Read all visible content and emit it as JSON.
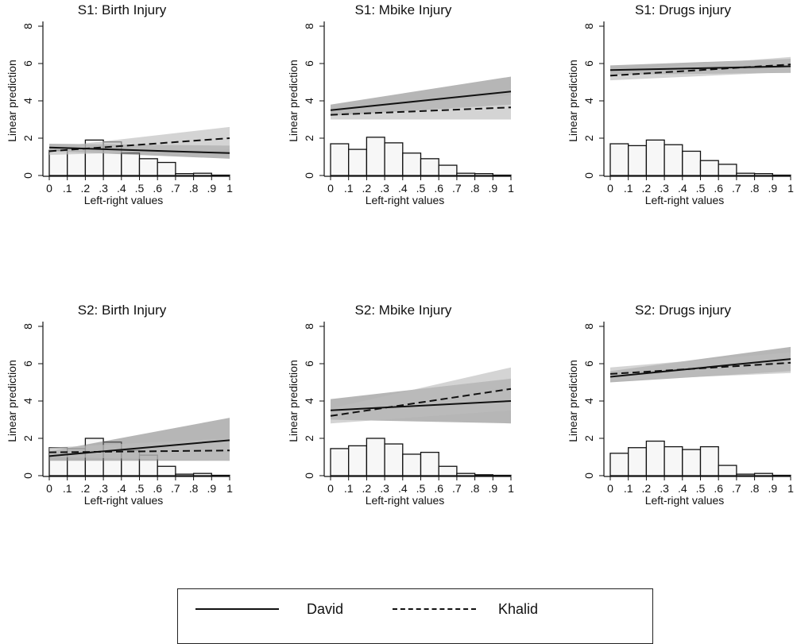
{
  "legend": {
    "entries": [
      "David",
      "Khalid"
    ]
  },
  "colors": {
    "line": "#111111",
    "band_dark": "#7a7a7a",
    "band_light": "#bdbdbd",
    "bar_fill": "#f7f7f7",
    "bar_edge": "#111111"
  },
  "chart_data": [
    {
      "type": "line",
      "title": "S1: Birth Injury",
      "xlabel": "Left-right values",
      "ylabel": "Linear prediction",
      "xlim": [
        0,
        1
      ],
      "ylim": [
        0,
        8
      ],
      "xticks": [
        "0",
        ".1",
        ".2",
        ".3",
        ".4",
        ".5",
        ".6",
        ".7",
        ".8",
        ".9",
        "1"
      ],
      "yticks": [
        "0",
        "2",
        "4",
        "6",
        "8"
      ],
      "series": [
        {
          "name": "David",
          "style": "solid",
          "x": [
            0,
            1
          ],
          "y": [
            1.5,
            1.2
          ],
          "ci_lower": [
            1.3,
            0.9
          ],
          "ci_upper": [
            1.7,
            1.6
          ]
        },
        {
          "name": "Khalid",
          "style": "dashed",
          "x": [
            0,
            1
          ],
          "y": [
            1.3,
            2.0
          ],
          "ci_lower": [
            1.1,
            1.4
          ],
          "ci_upper": [
            1.5,
            2.6
          ]
        }
      ],
      "histogram": {
        "bin_edges": [
          0,
          0.1,
          0.2,
          0.3,
          0.4,
          0.5,
          0.6,
          0.7,
          0.8,
          0.9,
          1.0
        ],
        "heights": [
          1.35,
          1.45,
          1.9,
          1.8,
          1.2,
          0.9,
          0.7,
          0.1,
          0.12,
          0.02
        ]
      }
    },
    {
      "type": "line",
      "title": "S1: Mbike Injury",
      "xlabel": "Left-right values",
      "ylabel": "Linear prediction",
      "xlim": [
        0,
        1
      ],
      "ylim": [
        0,
        8
      ],
      "xticks": [
        "0",
        ".1",
        ".2",
        ".3",
        ".4",
        ".5",
        ".6",
        ".7",
        ".8",
        ".9",
        "1"
      ],
      "yticks": [
        "0",
        "2",
        "4",
        "6",
        "8"
      ],
      "series": [
        {
          "name": "David",
          "style": "solid",
          "x": [
            0,
            1
          ],
          "y": [
            3.5,
            4.5
          ],
          "ci_lower": [
            3.2,
            3.8
          ],
          "ci_upper": [
            3.8,
            5.3
          ]
        },
        {
          "name": "Khalid",
          "style": "dashed",
          "x": [
            0,
            1
          ],
          "y": [
            3.25,
            3.65
          ],
          "ci_lower": [
            3.0,
            3.0
          ],
          "ci_upper": [
            3.5,
            4.3
          ]
        }
      ],
      "histogram": {
        "bin_edges": [
          0,
          0.1,
          0.2,
          0.3,
          0.4,
          0.5,
          0.6,
          0.7,
          0.8,
          0.9,
          1.0
        ],
        "heights": [
          1.7,
          1.4,
          2.05,
          1.75,
          1.2,
          0.9,
          0.55,
          0.12,
          0.1,
          0.02
        ]
      }
    },
    {
      "type": "line",
      "title": "S1: Drugs injury",
      "xlabel": "Left-right values",
      "ylabel": "Linear prediction",
      "xlim": [
        0,
        1
      ],
      "ylim": [
        0,
        8
      ],
      "xticks": [
        "0",
        ".1",
        ".2",
        ".3",
        ".4",
        ".5",
        ".6",
        ".7",
        ".8",
        ".9",
        "1"
      ],
      "yticks": [
        "0",
        "2",
        "4",
        "6",
        "8"
      ],
      "series": [
        {
          "name": "David",
          "style": "solid",
          "x": [
            0,
            1
          ],
          "y": [
            5.65,
            5.85
          ],
          "ci_lower": [
            5.4,
            5.5
          ],
          "ci_upper": [
            5.9,
            6.25
          ]
        },
        {
          "name": "Khalid",
          "style": "dashed",
          "x": [
            0,
            1
          ],
          "y": [
            5.35,
            5.95
          ],
          "ci_lower": [
            5.1,
            5.55
          ],
          "ci_upper": [
            5.6,
            6.35
          ]
        }
      ],
      "histogram": {
        "bin_edges": [
          0,
          0.1,
          0.2,
          0.3,
          0.4,
          0.5,
          0.6,
          0.7,
          0.8,
          0.9,
          1.0
        ],
        "heights": [
          1.7,
          1.6,
          1.9,
          1.65,
          1.3,
          0.8,
          0.6,
          0.12,
          0.1,
          0.02
        ]
      }
    },
    {
      "type": "line",
      "title": "S2: Birth Injury",
      "xlabel": "Left-right values",
      "ylabel": "Linear prediction",
      "xlim": [
        0,
        1
      ],
      "ylim": [
        0,
        8
      ],
      "xticks": [
        "0",
        ".1",
        ".2",
        ".3",
        ".4",
        ".5",
        ".6",
        ".7",
        ".8",
        ".9",
        "1"
      ],
      "yticks": [
        "0",
        "2",
        "4",
        "6",
        "8"
      ],
      "series": [
        {
          "name": "David",
          "style": "solid",
          "x": [
            0,
            1
          ],
          "y": [
            1.05,
            1.9
          ],
          "ci_lower": [
            0.8,
            0.8
          ],
          "ci_upper": [
            1.3,
            3.1
          ]
        },
        {
          "name": "Khalid",
          "style": "dashed",
          "x": [
            0,
            1
          ],
          "y": [
            1.25,
            1.35
          ],
          "ci_lower": [
            1.0,
            0.8
          ],
          "ci_upper": [
            1.5,
            2.0
          ]
        }
      ],
      "histogram": {
        "bin_edges": [
          0,
          0.1,
          0.2,
          0.3,
          0.4,
          0.5,
          0.6,
          0.7,
          0.8,
          0.9,
          1.0
        ],
        "heights": [
          1.5,
          1.45,
          2.0,
          1.8,
          1.35,
          1.1,
          0.5,
          0.08,
          0.12,
          0.02
        ]
      }
    },
    {
      "type": "line",
      "title": "S2: Mbike Injury",
      "xlabel": "Left-right values",
      "ylabel": "Linear prediction",
      "xlim": [
        0,
        1
      ],
      "ylim": [
        0,
        8
      ],
      "xticks": [
        "0",
        ".1",
        ".2",
        ".3",
        ".4",
        ".5",
        ".6",
        ".7",
        ".8",
        ".9",
        "1"
      ],
      "yticks": [
        "0",
        "2",
        "4",
        "6",
        "8"
      ],
      "series": [
        {
          "name": "David",
          "style": "solid",
          "x": [
            0,
            1
          ],
          "y": [
            3.5,
            4.0
          ],
          "ci_lower": [
            3.0,
            2.8
          ],
          "ci_upper": [
            4.1,
            5.2
          ]
        },
        {
          "name": "Khalid",
          "style": "dashed",
          "x": [
            0,
            1
          ],
          "y": [
            3.2,
            4.65
          ],
          "ci_lower": [
            2.8,
            3.5
          ],
          "ci_upper": [
            3.6,
            5.8
          ]
        }
      ],
      "histogram": {
        "bin_edges": [
          0,
          0.1,
          0.2,
          0.3,
          0.4,
          0.5,
          0.6,
          0.7,
          0.8,
          0.9,
          1.0
        ],
        "heights": [
          1.45,
          1.6,
          2.0,
          1.7,
          1.15,
          1.25,
          0.5,
          0.12,
          0.05,
          0.02
        ]
      }
    },
    {
      "type": "line",
      "title": "S2: Drugs injury",
      "xlabel": "Left-right values",
      "ylabel": "Linear prediction",
      "xlim": [
        0,
        1
      ],
      "ylim": [
        0,
        8
      ],
      "xticks": [
        "0",
        ".1",
        ".2",
        ".3",
        ".4",
        ".5",
        ".6",
        ".7",
        ".8",
        ".9",
        "1"
      ],
      "yticks": [
        "0",
        "2",
        "4",
        "6",
        "8"
      ],
      "series": [
        {
          "name": "David",
          "style": "solid",
          "x": [
            0,
            1
          ],
          "y": [
            5.3,
            6.25
          ],
          "ci_lower": [
            5.0,
            5.6
          ],
          "ci_upper": [
            5.6,
            6.9
          ]
        },
        {
          "name": "Khalid",
          "style": "dashed",
          "x": [
            0,
            1
          ],
          "y": [
            5.45,
            6.05
          ],
          "ci_lower": [
            5.1,
            5.5
          ],
          "ci_upper": [
            5.8,
            6.6
          ]
        }
      ],
      "histogram": {
        "bin_edges": [
          0,
          0.1,
          0.2,
          0.3,
          0.4,
          0.5,
          0.6,
          0.7,
          0.8,
          0.9,
          1.0
        ],
        "heights": [
          1.2,
          1.5,
          1.85,
          1.55,
          1.4,
          1.55,
          0.55,
          0.08,
          0.12,
          0.02
        ]
      }
    }
  ]
}
